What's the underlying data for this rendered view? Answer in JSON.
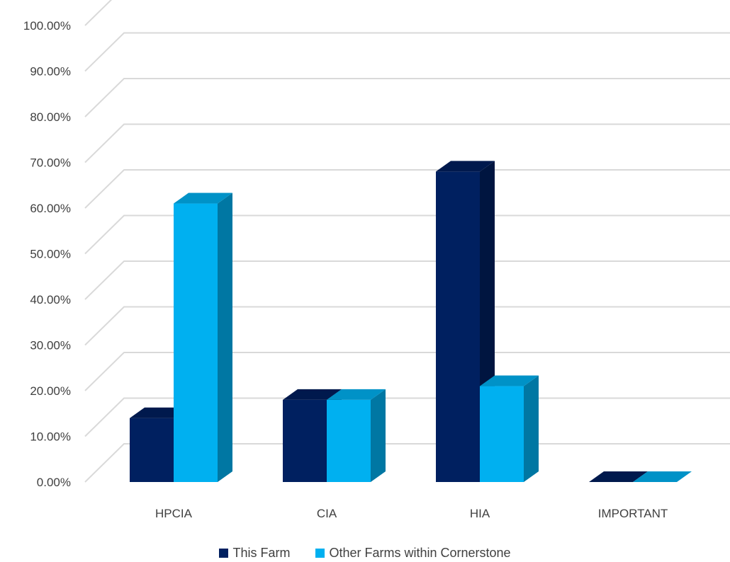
{
  "chart_data": {
    "type": "bar",
    "categories": [
      "HPCIA",
      "CIA",
      "HIA",
      "IMPORTANT"
    ],
    "series": [
      {
        "name": "This Farm",
        "values": [
          0.14,
          0.18,
          0.68,
          0.0
        ]
      },
      {
        "name": "Other Farms within Cornerstone",
        "values": [
          0.61,
          0.18,
          0.21,
          0.0
        ]
      }
    ],
    "ylim": [
      0,
      1
    ],
    "yticks": [
      "0.00%",
      "10.00%",
      "20.00%",
      "30.00%",
      "40.00%",
      "50.00%",
      "60.00%",
      "70.00%",
      "80.00%",
      "90.00%",
      "100.00%"
    ],
    "grid": true,
    "legend_position": "bottom",
    "colors": {
      "this_farm_front": "#002060",
      "this_farm_side": "#001540",
      "this_farm_top": "#00194d",
      "other_front": "#00B0F0",
      "other_side": "#0077A3",
      "other_top": "#0092C7",
      "grid": "#d9d9d9"
    }
  }
}
